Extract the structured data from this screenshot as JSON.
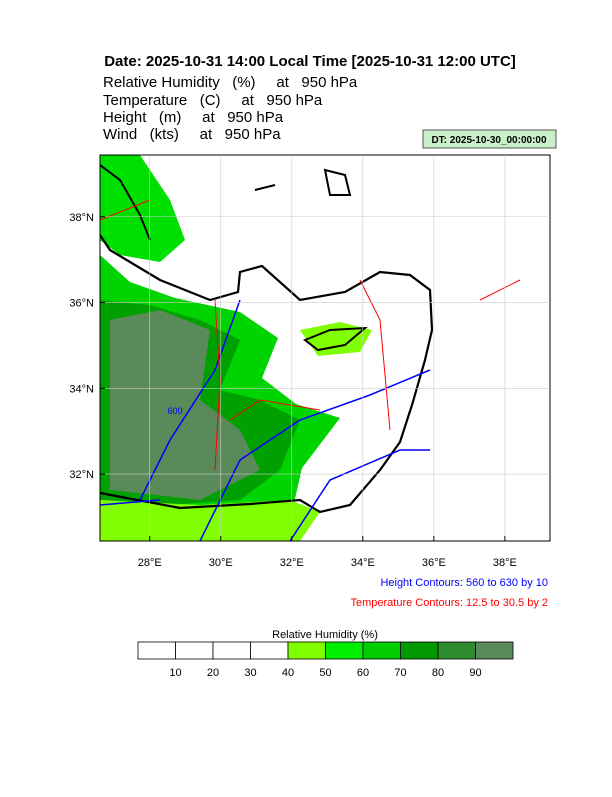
{
  "header": {
    "title": "Date: 2025-10-31  14:00 Local Time [2025-10-31  12:00 UTC]",
    "fields": [
      "Relative Humidity   (%)     at   950 hPa",
      "Temperature   (C)     at   950 hPa",
      "Height   (m)     at   950 hPa",
      "Wind   (kts)     at   950 hPa"
    ],
    "dt_label": "DT: 2025-10-30_00:00:00"
  },
  "map": {
    "xlim": [
      26.6,
      39.27
    ],
    "ylim": [
      30.44,
      39.44
    ],
    "xticks": [
      {
        "value": 28,
        "label": "28°E"
      },
      {
        "value": 30,
        "label": "30°E"
      },
      {
        "value": 32,
        "label": "32°E"
      },
      {
        "value": 34,
        "label": "34°E"
      },
      {
        "value": 36,
        "label": "36°E"
      },
      {
        "value": 38,
        "label": "38°E"
      }
    ],
    "yticks": [
      {
        "value": 32,
        "label": "32°N"
      },
      {
        "value": 34,
        "label": "34°N"
      },
      {
        "value": 36,
        "label": "36°N"
      },
      {
        "value": 38,
        "label": "38°N"
      }
    ],
    "contour_label": "600"
  },
  "notes": [
    {
      "text": "Height Contours: 560 to 630 by 10",
      "color": "#0000ff"
    },
    {
      "text": "Temperature Contours: 12.5 to 30.5 by 2",
      "color": "#ff0000"
    }
  ],
  "colorbar": {
    "title": "Relative Humidity  (%)",
    "levels": [
      10,
      20,
      30,
      40,
      50,
      60,
      70,
      80,
      90
    ],
    "colors": [
      "#ffffff",
      "#ffffff",
      "#ffffff",
      "#ffffff",
      "#80ff00",
      "#00ee00",
      "#00cc00",
      "#009a00",
      "#2e8b2e",
      "#5a8a5a"
    ]
  }
}
